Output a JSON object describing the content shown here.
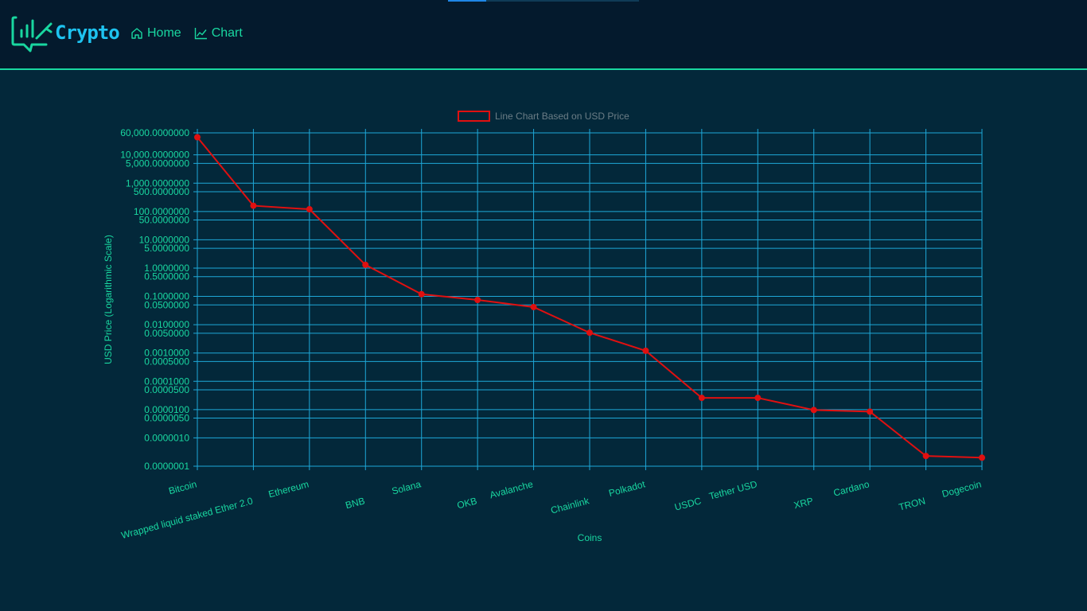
{
  "header": {
    "brand": "Crypto",
    "nav": [
      {
        "label": "Home",
        "icon": "home-icon"
      },
      {
        "label": "Chart",
        "icon": "line-chart-icon"
      }
    ],
    "colors": {
      "accent": "#19d7a0",
      "brand": "#1ec3f0",
      "background": "#041a2d"
    }
  },
  "chart_data": {
    "type": "line",
    "legend_label": "Line Chart Based on USD Price",
    "legend_position": "top-center",
    "xlabel": "Coins",
    "ylabel": "USD Price (Logarithmic Scale)",
    "y_scale": "log",
    "ylim": [
      1e-07,
      60000
    ],
    "grid": true,
    "y_ticks": [
      {
        "value": 60000,
        "label": "60,000.0000000"
      },
      {
        "value": 10000,
        "label": "10,000.0000000"
      },
      {
        "value": 5000,
        "label": "5,000.0000000"
      },
      {
        "value": 1000,
        "label": "1,000.0000000"
      },
      {
        "value": 500,
        "label": "500.0000000"
      },
      {
        "value": 100,
        "label": "100.0000000"
      },
      {
        "value": 50,
        "label": "50.0000000"
      },
      {
        "value": 10,
        "label": "10.0000000"
      },
      {
        "value": 5,
        "label": "5.0000000"
      },
      {
        "value": 1,
        "label": "1.0000000"
      },
      {
        "value": 0.5,
        "label": "0.5000000"
      },
      {
        "value": 0.1,
        "label": "0.1000000"
      },
      {
        "value": 0.05,
        "label": "0.0500000"
      },
      {
        "value": 0.01,
        "label": "0.0100000"
      },
      {
        "value": 0.005,
        "label": "0.0050000"
      },
      {
        "value": 0.001,
        "label": "0.0010000"
      },
      {
        "value": 0.0005,
        "label": "0.0005000"
      },
      {
        "value": 0.0001,
        "label": "0.0001000"
      },
      {
        "value": 5e-05,
        "label": "0.0000500"
      },
      {
        "value": 1e-05,
        "label": "0.0000100"
      },
      {
        "value": 5e-06,
        "label": "0.0000050"
      },
      {
        "value": 1e-06,
        "label": "0.0000010"
      },
      {
        "value": 1e-07,
        "label": "0.0000001"
      }
    ],
    "categories": [
      "Bitcoin",
      "Wrapped liquid staked Ether 2.0",
      "Ethereum",
      "BNB",
      "Solana",
      "OKB",
      "Avalanche",
      "Chainlink",
      "Polkadot",
      "USDC",
      "Tether USD",
      "XRP",
      "Cardano",
      "TRON",
      "Dogecoin"
    ],
    "values": [
      42000,
      160,
      120,
      1.3,
      0.12,
      0.075,
      0.042,
      0.0052,
      0.0012,
      2.6e-05,
      2.6e-05,
      9.7e-06,
      8.5e-06,
      2.3e-07,
      2e-07
    ],
    "line_color": "#e01010",
    "axis_text_color": "#19d7a0",
    "grid_color": "#1ea8d8"
  }
}
